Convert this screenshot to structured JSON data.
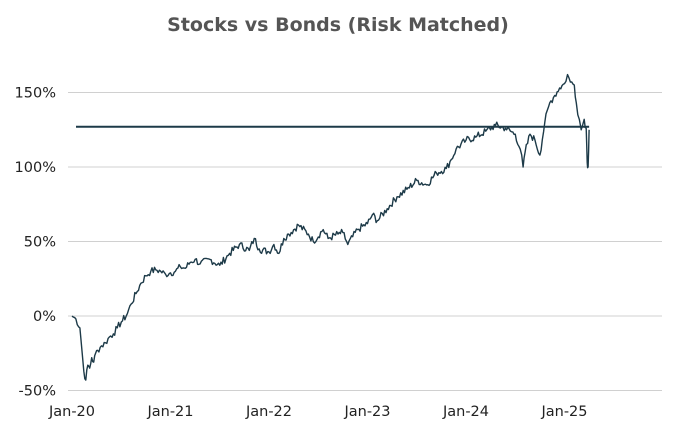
{
  "chart_data": {
    "type": "line",
    "title": "Stocks vs Bonds (Risk Matched)",
    "xlabel": "",
    "ylabel": "",
    "x_ticks": [
      "Jan-20",
      "Jan-21",
      "Jan-22",
      "Jan-23",
      "Jan-24",
      "Jan-25"
    ],
    "y_ticks": [
      "-50%",
      "0%",
      "50%",
      "100%",
      "150%"
    ],
    "y_tick_values": [
      -50,
      0,
      50,
      100,
      150
    ],
    "ylim": [
      -50,
      165
    ],
    "xlim": [
      0,
      6
    ],
    "grid": true,
    "reference_line": {
      "value": 127,
      "x_range": [
        0,
        5.25
      ]
    },
    "series": [
      {
        "name": "Stocks vs Bonds",
        "color": "#1d3a48",
        "x": [
          0.0,
          0.04,
          0.08,
          0.1,
          0.12,
          0.14,
          0.16,
          0.18,
          0.2,
          0.22,
          0.24,
          0.26,
          0.3,
          0.34,
          0.38,
          0.42,
          0.46,
          0.5,
          0.55,
          0.6,
          0.65,
          0.7,
          0.75,
          0.8,
          0.85,
          0.9,
          0.95,
          1.0,
          1.05,
          1.1,
          1.15,
          1.2,
          1.25,
          1.3,
          1.4,
          1.5,
          1.6,
          1.7,
          1.8,
          1.85,
          1.9,
          2.0,
          2.05,
          2.1,
          2.15,
          2.2,
          2.3,
          2.4,
          2.45,
          2.55,
          2.6,
          2.7,
          2.75,
          2.8,
          2.9,
          3.0,
          3.05,
          3.1,
          3.2,
          3.3,
          3.4,
          3.5,
          3.6,
          3.7,
          3.8,
          3.85,
          3.9,
          4.0,
          4.1,
          4.2,
          4.3,
          4.4,
          4.5,
          4.55,
          4.58,
          4.6,
          4.65,
          4.7,
          4.75,
          4.8,
          4.85,
          4.9,
          4.95,
          5.0,
          5.03,
          5.06,
          5.1,
          5.12,
          5.15,
          5.17,
          5.2,
          5.22,
          5.23,
          5.24,
          5.25
        ],
        "values": [
          0,
          -2,
          -8,
          -22,
          -37,
          -43,
          -33,
          -35,
          -28,
          -31,
          -25,
          -23,
          -20,
          -18,
          -14,
          -12,
          -8,
          -4,
          0,
          8,
          15,
          22,
          27,
          30,
          31,
          30,
          28,
          29,
          30,
          33,
          32,
          36,
          38,
          35,
          38,
          34,
          42,
          48,
          44,
          52,
          45,
          43,
          48,
          42,
          52,
          55,
          61,
          55,
          50,
          58,
          52,
          55,
          56,
          48,
          58,
          62,
          68,
          64,
          72,
          80,
          85,
          91,
          88,
          96,
          99,
          105,
          112,
          118,
          120,
          124,
          128,
          126,
          122,
          112,
          100,
          110,
          122,
          118,
          108,
          130,
          143,
          148,
          153,
          156,
          162,
          157,
          155,
          143,
          132,
          125,
          132,
          126,
          103,
          100,
          125
        ]
      }
    ]
  }
}
